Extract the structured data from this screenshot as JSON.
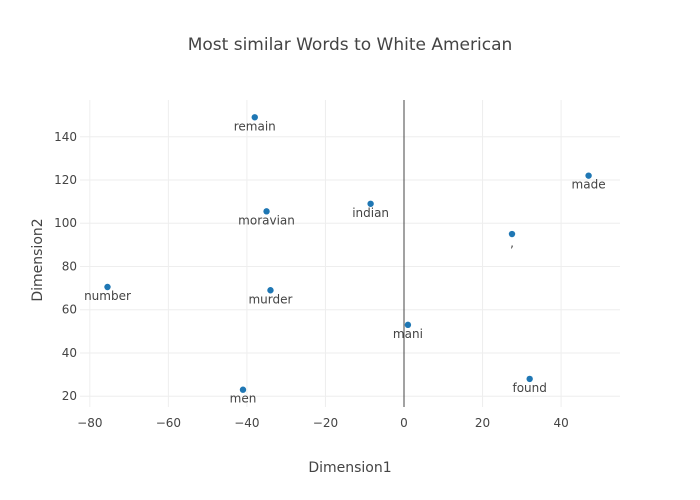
{
  "chart_data": {
    "type": "scatter",
    "title": "Most similar Words to White American",
    "xlabel": "Dimension1",
    "ylabel": "Dimension2",
    "xlim": [
      -82.5,
      55
    ],
    "ylim": [
      15,
      157
    ],
    "xticks": [
      -80,
      -60,
      -40,
      -20,
      0,
      20,
      40
    ],
    "yticks": [
      20,
      40,
      60,
      80,
      100,
      120,
      140
    ],
    "xtick_labels": [
      "−80",
      "−60",
      "−40",
      "−20",
      "0",
      "20",
      "40"
    ],
    "ytick_labels": [
      "20",
      "40",
      "60",
      "80",
      "100",
      "120",
      "140"
    ],
    "grid": true,
    "marker_color": "#1f77b4",
    "points": [
      {
        "label": "remain",
        "x": -38,
        "y": 149
      },
      {
        "label": "made",
        "x": 47,
        "y": 122
      },
      {
        "label": "indian",
        "x": -8.5,
        "y": 109
      },
      {
        "label": "moravian",
        "x": -35,
        "y": 105.5
      },
      {
        "label": ",",
        "x": 27.5,
        "y": 95
      },
      {
        "label": "number",
        "x": -75.5,
        "y": 70.5
      },
      {
        "label": "murder",
        "x": -34,
        "y": 69
      },
      {
        "label": "mani",
        "x": 1,
        "y": 53
      },
      {
        "label": "found",
        "x": 32,
        "y": 28
      },
      {
        "label": "men",
        "x": -41,
        "y": 23
      }
    ]
  }
}
